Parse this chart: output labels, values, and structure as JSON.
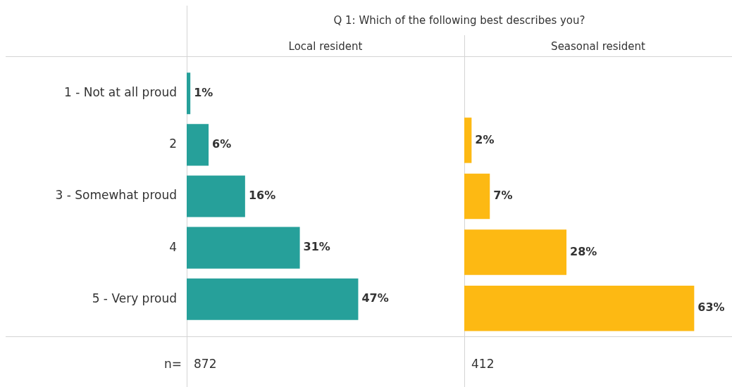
{
  "chart_data": [
    {
      "type": "bar",
      "orientation": "horizontal",
      "title": "Q 1: Which of the following best describes you?",
      "subtitle": "Local resident",
      "categories": [
        "1 - Not at all proud",
        "2",
        "3 - Somewhat proud",
        "4",
        "5 - Very proud"
      ],
      "values": [
        1,
        6,
        16,
        31,
        47
      ],
      "value_labels": [
        "1%",
        "6%",
        "16%",
        "31%",
        "47%"
      ],
      "color": "#26a09a",
      "legend": false,
      "tick_labels": "y",
      "annotations": [
        "n=",
        "872"
      ]
    },
    {
      "type": "bar",
      "orientation": "horizontal",
      "subtitle": "Seasonal resident",
      "categories": [
        null,
        null,
        null,
        null,
        null
      ],
      "values": [
        null,
        2,
        7,
        28,
        63
      ],
      "value_labels": [
        null,
        "2%",
        "7%",
        "28%",
        "63%"
      ],
      "color": "#fdb913",
      "legend": false,
      "tick_labels": false,
      "annotations": [
        "412"
      ]
    }
  ]
}
